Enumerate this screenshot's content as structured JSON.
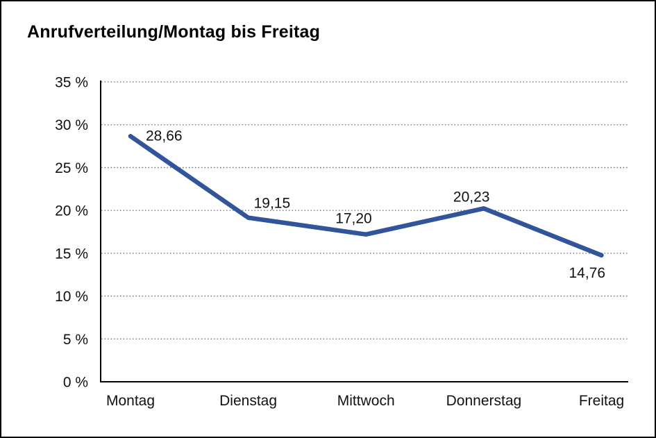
{
  "header": {
    "title": "Anrufverteilung/Montag bis Freitag"
  },
  "chart_data": {
    "type": "line",
    "title": "Anrufverteilung/Montag bis Freitag",
    "categories": [
      "Montag",
      "Dienstag",
      "Mittwoch",
      "Donnerstag",
      "Freitag"
    ],
    "series": [
      {
        "name": "Anrufverteilung",
        "values": [
          28.66,
          19.15,
          17.2,
          20.23,
          14.76
        ],
        "point_labels": [
          "28,66",
          "19,15",
          "17,20",
          "20,23",
          "14,76"
        ]
      }
    ],
    "xlabel": "",
    "ylabel": "",
    "ylim": [
      0,
      35
    ],
    "y_tick_step": 5,
    "y_tick_labels": [
      "0 %",
      "5 %",
      "10 %",
      "15 %",
      "20 %",
      "25 %",
      "30 %",
      "35 %"
    ],
    "grid": "horizontal-dotted",
    "legend": "none",
    "colors": {
      "line": "#32549B",
      "axis": "#000000",
      "gridline": "#6e6e6e",
      "text": "#111111",
      "background": "#ffffff"
    }
  }
}
